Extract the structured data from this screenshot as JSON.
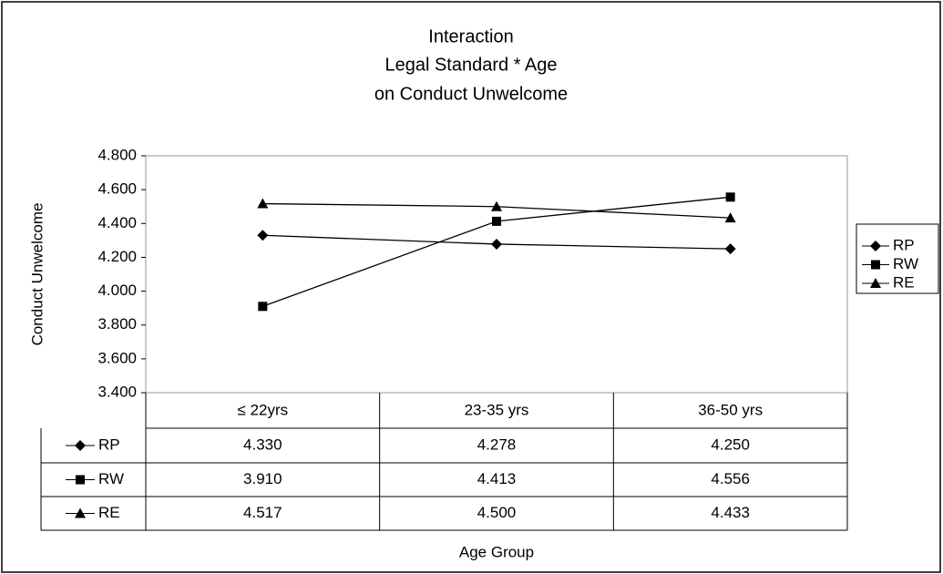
{
  "chart_data": {
    "type": "line",
    "title": [
      "Interaction",
      "Legal Standard * Age",
      "on Conduct Unwelcome"
    ],
    "y_label": "Conduct Unwelcome",
    "x_label": "Age Group",
    "categories": [
      "≤ 22yrs",
      "23-35 yrs",
      "36-50 yrs"
    ],
    "series": [
      {
        "name": "RP",
        "color": "#000000",
        "marker": "diamond",
        "values": [
          4.33,
          4.278,
          4.25
        ],
        "value_labels": [
          "4.330",
          "4.278",
          "4.250"
        ]
      },
      {
        "name": "RW",
        "color": "#000000",
        "marker": "square",
        "values": [
          3.91,
          4.413,
          4.556
        ],
        "value_labels": [
          "3.910",
          "4.413",
          "4.556"
        ]
      },
      {
        "name": "RE",
        "color": "#000000",
        "marker": "triangle",
        "values": [
          4.517,
          4.5,
          4.433
        ],
        "value_labels": [
          "4.517",
          "4.500",
          "4.433"
        ]
      }
    ],
    "ylim": [
      3.4,
      4.8
    ],
    "yticks": [
      {
        "value": 3.4,
        "label": "3.400"
      },
      {
        "value": 3.6,
        "label": "3.600"
      },
      {
        "value": 3.8,
        "label": "3.800"
      },
      {
        "value": 4.0,
        "label": "4.000"
      },
      {
        "value": 4.2,
        "label": "4.200"
      },
      {
        "value": 4.4,
        "label": "4.400"
      },
      {
        "value": 4.6,
        "label": "4.600"
      },
      {
        "value": 4.8,
        "label": "4.800"
      }
    ],
    "legend": "right"
  }
}
